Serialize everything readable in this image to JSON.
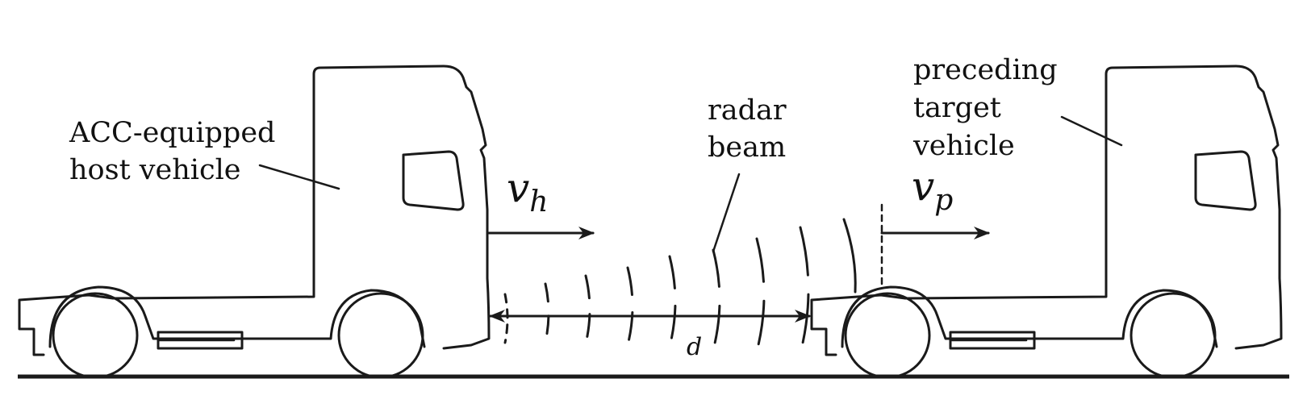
{
  "labels": {
    "host_line1": "ACC-equipped",
    "host_line2": "host vehicle",
    "radar_line1": "radar",
    "radar_line2": "beam",
    "target_line1": "preceding",
    "target_line2": "target",
    "target_line3": "vehicle"
  },
  "variables": {
    "host_speed": "v",
    "host_speed_sub": "h",
    "target_speed": "v",
    "target_speed_sub": "p",
    "distance": "d"
  }
}
